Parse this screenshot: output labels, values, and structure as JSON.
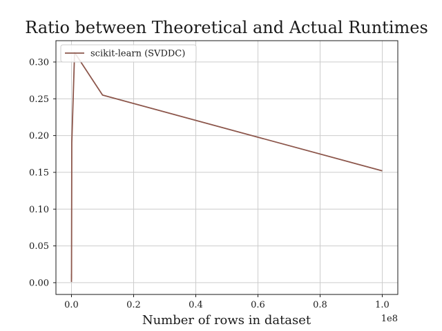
{
  "chart_data": {
    "type": "line",
    "title": "Ratio between Theoretical and Actual Runtimes",
    "xlabel": "Number of rows in dataset",
    "ylabel": "",
    "x_offset_text": "1e8",
    "xlim": [
      -5000000,
      105000000
    ],
    "ylim": [
      -0.016,
      0.329
    ],
    "x_ticks": [
      0,
      20000000,
      40000000,
      60000000,
      80000000,
      100000000
    ],
    "x_tick_labels": [
      "0.0",
      "0.2",
      "0.4",
      "0.6",
      "0.8",
      "1.0"
    ],
    "y_ticks": [
      0.0,
      0.05,
      0.1,
      0.15,
      0.2,
      0.25,
      0.3
    ],
    "y_tick_labels": [
      "0.00",
      "0.05",
      "0.10",
      "0.15",
      "0.20",
      "0.25",
      "0.30"
    ],
    "grid": true,
    "legend_position": "upper-left",
    "series": [
      {
        "name": "scikit-learn (SVDDC)",
        "color": "#8c564b",
        "x": [
          100,
          1000,
          10000,
          100000,
          1000000,
          10000000,
          100000000
        ],
        "y": [
          0.001,
          0.012,
          0.005,
          0.19,
          0.313,
          0.255,
          0.152
        ]
      }
    ]
  }
}
